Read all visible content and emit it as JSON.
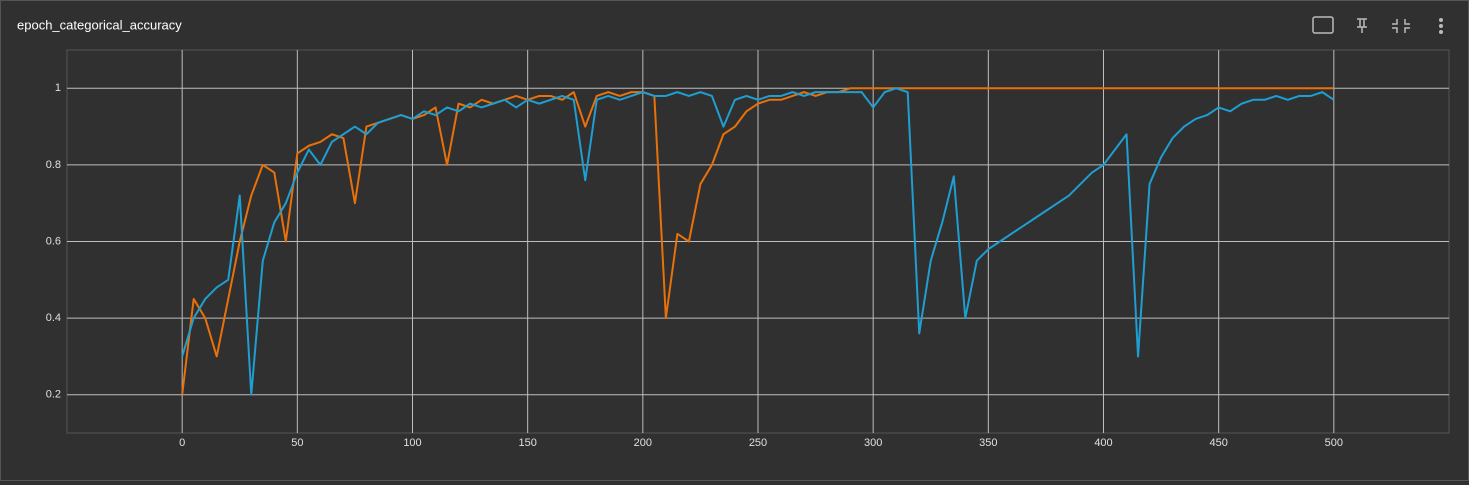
{
  "chart_data": {
    "type": "line",
    "title": "epoch_categorical_accuracy",
    "x": [
      0,
      5,
      10,
      15,
      20,
      25,
      30,
      35,
      40,
      45,
      50,
      55,
      60,
      65,
      70,
      75,
      80,
      85,
      90,
      95,
      100,
      105,
      110,
      115,
      120,
      125,
      130,
      135,
      140,
      145,
      150,
      155,
      160,
      165,
      170,
      175,
      180,
      185,
      190,
      195,
      200,
      205,
      210,
      215,
      220,
      225,
      230,
      235,
      240,
      245,
      250,
      255,
      260,
      265,
      270,
      275,
      280,
      285,
      290,
      295,
      300,
      305,
      310,
      315,
      320,
      325,
      330,
      335,
      340,
      345,
      350,
      355,
      360,
      365,
      370,
      375,
      380,
      385,
      390,
      395,
      400,
      405,
      410,
      415,
      420,
      425,
      430,
      435,
      440,
      445,
      450,
      455,
      460,
      465,
      470,
      475,
      480,
      485,
      490,
      495,
      500
    ],
    "series": [
      {
        "color": "#e8710a",
        "values": [
          0.2,
          0.45,
          0.4,
          0.3,
          0.45,
          0.6,
          0.72,
          0.8,
          0.78,
          0.6,
          0.83,
          0.85,
          0.86,
          0.88,
          0.87,
          0.7,
          0.9,
          0.91,
          0.92,
          0.93,
          0.92,
          0.93,
          0.95,
          0.8,
          0.96,
          0.95,
          0.97,
          0.96,
          0.97,
          0.98,
          0.97,
          0.98,
          0.98,
          0.97,
          0.99,
          0.9,
          0.98,
          0.99,
          0.98,
          0.99,
          0.99,
          0.98,
          0.4,
          0.62,
          0.6,
          0.75,
          0.8,
          0.88,
          0.9,
          0.94,
          0.96,
          0.97,
          0.97,
          0.98,
          0.99,
          0.98,
          0.99,
          0.99,
          1,
          1,
          1,
          1,
          1,
          1,
          1,
          1,
          1,
          1,
          1,
          1,
          1,
          1,
          1,
          1,
          1,
          1,
          1,
          1,
          1,
          1,
          1,
          1,
          1,
          1,
          1,
          1,
          1,
          1,
          1,
          1,
          1,
          1,
          1,
          1,
          1,
          1,
          1,
          1,
          1,
          1,
          1
        ]
      },
      {
        "color": "#1f9ed1",
        "values": [
          0.3,
          0.4,
          0.45,
          0.48,
          0.5,
          0.72,
          0.2,
          0.55,
          0.65,
          0.7,
          0.78,
          0.84,
          0.8,
          0.86,
          0.88,
          0.9,
          0.88,
          0.91,
          0.92,
          0.93,
          0.92,
          0.94,
          0.93,
          0.95,
          0.94,
          0.96,
          0.95,
          0.96,
          0.97,
          0.95,
          0.97,
          0.96,
          0.97,
          0.98,
          0.97,
          0.76,
          0.97,
          0.98,
          0.97,
          0.98,
          0.99,
          0.98,
          0.98,
          0.99,
          0.98,
          0.99,
          0.98,
          0.9,
          0.97,
          0.98,
          0.97,
          0.98,
          0.98,
          0.99,
          0.98,
          0.99,
          0.99,
          0.99,
          0.99,
          0.99,
          0.95,
          0.99,
          1,
          0.99,
          0.36,
          0.55,
          0.65,
          0.77,
          0.4,
          0.55,
          0.58,
          0.6,
          0.62,
          0.64,
          0.66,
          0.68,
          0.7,
          0.72,
          0.75,
          0.78,
          0.8,
          0.84,
          0.88,
          0.3,
          0.75,
          0.82,
          0.87,
          0.9,
          0.92,
          0.93,
          0.95,
          0.94,
          0.96,
          0.97,
          0.97,
          0.98,
          0.97,
          0.98,
          0.98,
          0.99,
          0.97
        ]
      }
    ],
    "xlim": [
      -50,
      550
    ],
    "xticks": [
      0,
      50,
      100,
      150,
      200,
      250,
      300,
      350,
      400,
      450,
      500
    ],
    "ylim": [
      0.1,
      1.1
    ],
    "yticks": [
      0.2,
      0.4,
      0.6,
      0.8,
      1
    ],
    "grid": true
  }
}
